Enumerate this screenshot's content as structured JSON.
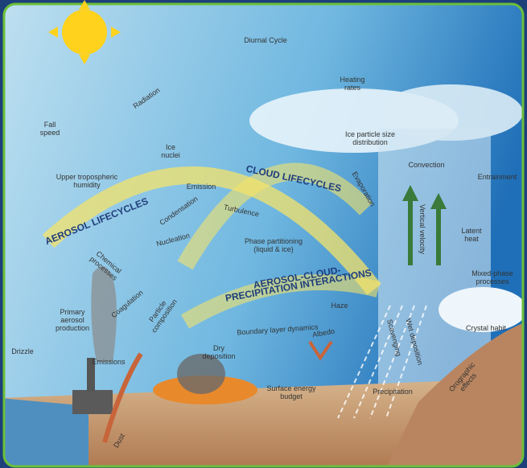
{
  "labels": {
    "diurnal_cycle": "Diurnal Cycle",
    "radiation": "Radiation",
    "heating_rates": "Heating rates",
    "fall_speed": "Fall speed",
    "ice_nuclei": "Ice nuclei",
    "ice_particle_size_distribution": "Ice particle size distribution",
    "upper_tropospheric_humidity": "Upper tropospheric humidity",
    "cloud_lifecycles": "CLOUD LIFECYCLES",
    "emission": "Emission",
    "evaporation": "Evaporation",
    "convection": "Convection",
    "entrainment": "Entrainment",
    "aerosol_lifecycles": "AEROSOL LIFECYCLES",
    "condensation": "Condensation",
    "turbulence": "Turbulence",
    "nucleation": "Nucleation",
    "phase_partitioning": "Phase partitioning (liquid & ice)",
    "vertical_velocity": "Vertical velocity",
    "latent_heat": "Latent heat",
    "chemical_processes": "Chemical processes",
    "mixed_phase_processes": "Mixed-phase processes",
    "acp_interactions": "AEROSOL-CLOUD-PRECIPITATION INTERACTIONS",
    "haze": "Haze",
    "coagulation": "Coagulation",
    "particle_composition": "Particle composition",
    "primary_aerosol_production": "Primary aerosol production",
    "drizzle": "Drizzle",
    "emissions": "Emissions",
    "boundary_layer_dynamics": "Boundary layer dynamics",
    "albedo": "Albedo",
    "scavenging": "Scavenging",
    "wet_deposition": "Wet deposition",
    "crystal_habit": "Crystal habit",
    "dry_deposition": "Dry deposition",
    "surface_energy_budget": "Surface energy budget",
    "precipitation": "Precipitation",
    "orographic_effects": "Orographic effects",
    "dust": "Dust"
  }
}
